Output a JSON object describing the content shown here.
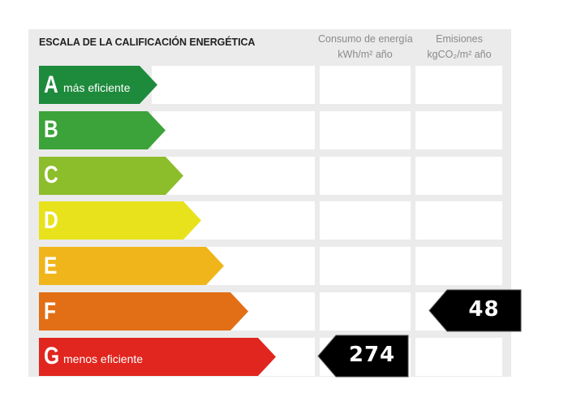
{
  "header": {
    "title": "ESCALA DE LA CALIFICACIÓN ENERGÉTICA",
    "consumo_label": "Consumo de energía",
    "consumo_unit": "kWh/m² año",
    "emisiones_label": "Emisiones",
    "emisiones_unit": "kgCO₂/m² año"
  },
  "ratings": [
    {
      "letter": "A",
      "description": "más eficiente",
      "color": "#1e8a3c"
    },
    {
      "letter": "B",
      "description": "",
      "color": "#3ca33a"
    },
    {
      "letter": "C",
      "description": "",
      "color": "#8cbd2b"
    },
    {
      "letter": "D",
      "description": "",
      "color": "#e8e21c"
    },
    {
      "letter": "E",
      "description": "",
      "color": "#f0b51a"
    },
    {
      "letter": "F",
      "description": "",
      "color": "#e26f16"
    },
    {
      "letter": "G",
      "description": "menos eficiente",
      "color": "#e0261e"
    }
  ],
  "indicators": {
    "consumo": {
      "value": "274",
      "rating": "G"
    },
    "emisiones": {
      "value": "48",
      "rating": "F"
    }
  }
}
